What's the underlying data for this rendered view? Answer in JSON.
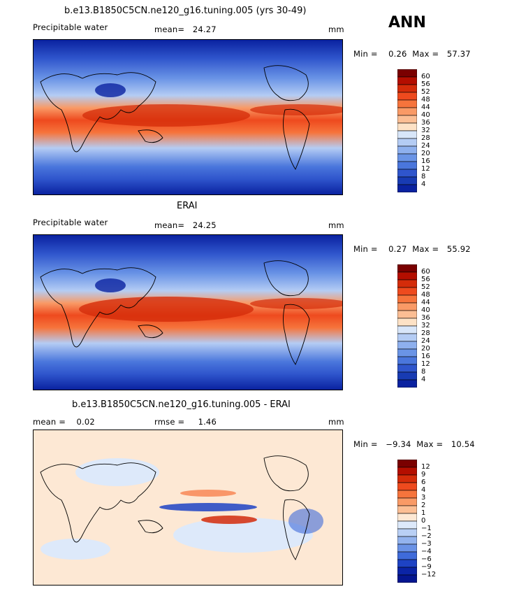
{
  "season": "ANN",
  "panels": [
    {
      "title": "b.e13.B1850C5CN.ne120_g16.tuning.005 (yrs 30-49)",
      "left_label": "Precipitable water",
      "stat1": "mean=   24.27",
      "stat2": "",
      "units": "mm",
      "minmax": "Min =    0.26  Max =   57.37",
      "levels": [
        "60",
        "56",
        "52",
        "48",
        "44",
        "40",
        "36",
        "32",
        "28",
        "24",
        "20",
        "16",
        "12",
        "8",
        "4"
      ],
      "colors": [
        "#7a0000",
        "#b40e00",
        "#d42c0a",
        "#ee4a1e",
        "#f6743c",
        "#f99a66",
        "#fbbe94",
        "#fde2c6",
        "#d8e6f9",
        "#b4ccf4",
        "#8eb0ee",
        "#6a94e6",
        "#4a76dc",
        "#2f55cc",
        "#183bb3",
        "#0a22a0"
      ]
    },
    {
      "title": "ERAI",
      "left_label": "Precipitable water",
      "stat1": "mean=   24.25",
      "stat2": "",
      "units": "mm",
      "minmax": "Min =    0.27  Max =   55.92",
      "levels": [
        "60",
        "56",
        "52",
        "48",
        "44",
        "40",
        "36",
        "32",
        "28",
        "24",
        "20",
        "16",
        "12",
        "8",
        "4"
      ],
      "colors": [
        "#7a0000",
        "#b40e00",
        "#d42c0a",
        "#ee4a1e",
        "#f6743c",
        "#f99a66",
        "#fbbe94",
        "#fde2c6",
        "#d8e6f9",
        "#b4ccf4",
        "#8eb0ee",
        "#6a94e6",
        "#4a76dc",
        "#2f55cc",
        "#183bb3",
        "#0a22a0"
      ]
    },
    {
      "title": "b.e13.B1850C5CN.ne120_g16.tuning.005 - ERAI",
      "left_label": "mean =    0.02",
      "stat1": "rmse =     1.46",
      "stat2": "",
      "units": "mm",
      "minmax": "Min =   −9.34  Max =   10.54",
      "levels": [
        "12",
        "9",
        "6",
        "4",
        "3",
        "2",
        "1",
        "0",
        "−1",
        "−2",
        "−3",
        "−4",
        "−6",
        "−9",
        "−12"
      ],
      "colors": [
        "#7a0000",
        "#b40e00",
        "#d42c0a",
        "#ee4a1e",
        "#f6743c",
        "#f99a66",
        "#fbbe94",
        "#fde8d4",
        "#dde9fa",
        "#b9d0f5",
        "#93b3ee",
        "#6a92e6",
        "#3f6bda",
        "#1e43c4",
        "#0b24a6",
        "#051690"
      ]
    }
  ],
  "chart_data": [
    {
      "type": "heatmap",
      "title": "b.e13.B1850C5CN.ne120_g16.tuning.005 (yrs 30-49)",
      "variable": "Precipitable water",
      "mean": 24.27,
      "units": "mm",
      "min": 0.26,
      "max": 57.37,
      "contour_levels": [
        4,
        8,
        12,
        16,
        20,
        24,
        28,
        32,
        36,
        40,
        44,
        48,
        52,
        56,
        60
      ]
    },
    {
      "type": "heatmap",
      "title": "ERAI",
      "variable": "Precipitable water",
      "mean": 24.25,
      "units": "mm",
      "min": 0.27,
      "max": 55.92,
      "contour_levels": [
        4,
        8,
        12,
        16,
        20,
        24,
        28,
        32,
        36,
        40,
        44,
        48,
        52,
        56,
        60
      ]
    },
    {
      "type": "heatmap",
      "title": "b.e13.B1850C5CN.ne120_g16.tuning.005 - ERAI",
      "mean": 0.02,
      "rmse": 1.46,
      "units": "mm",
      "min": -9.34,
      "max": 10.54,
      "contour_levels": [
        -12,
        -9,
        -6,
        -4,
        -3,
        -2,
        -1,
        0,
        1,
        2,
        3,
        4,
        6,
        9,
        12
      ]
    }
  ]
}
